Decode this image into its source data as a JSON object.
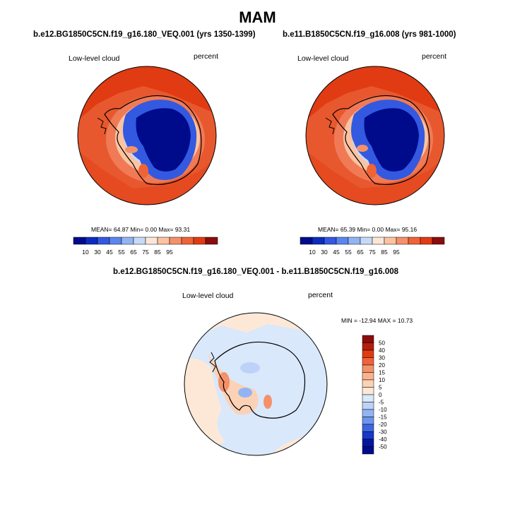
{
  "title": "MAM",
  "panels": [
    {
      "id": "case1",
      "title": "b.e12.BG1850C5CN.f19_g16.180_VEQ.001 (yrs 1350-1399)",
      "variable": "Low-level cloud",
      "units": "percent",
      "stats": "MEAN=  64.87  Min=   0.00  Max=  93.31",
      "colorbar_labels": [
        "10",
        "30",
        "45",
        "55",
        "65",
        "75",
        "85",
        "95"
      ]
    },
    {
      "id": "case2",
      "title": "b.e11.B1850C5CN.f19_g16.008 (yrs 981-1000)",
      "variable": "Low-level cloud",
      "units": "percent",
      "stats": "MEAN=  65.39  Min=   0.00  Max=  95.16",
      "colorbar_labels": [
        "10",
        "30",
        "45",
        "55",
        "65",
        "75",
        "85",
        "95"
      ]
    },
    {
      "id": "difference",
      "title": "b.e12.BG1850C5CN.f19_g16.180_VEQ.001 - b.e11.B1850C5CN.f19_g16.008",
      "variable": "Low-level cloud",
      "units": "percent",
      "stats": "MIN = -12.94 MAX =  10.73",
      "colorbar_labels": [
        "50",
        "40",
        "30",
        "20",
        "15",
        "10",
        "5",
        "0",
        "-5",
        "-10",
        "-15",
        "-20",
        "-30",
        "-40",
        "-50"
      ]
    }
  ],
  "colors": {
    "abs_scale": [
      "#000b8c",
      "#0c2bbf",
      "#3359e0",
      "#5c85ee",
      "#93b4f3",
      "#c6daf8",
      "#fbe7d8",
      "#fbc3a2",
      "#f5916a",
      "#ef6337",
      "#e03b13",
      "#8a0c0c"
    ],
    "diff_scale": [
      "#8a0c0c",
      "#b51d0f",
      "#e03b13",
      "#ef6337",
      "#f5916a",
      "#fbb38e",
      "#fcd2b6",
      "#fde8d8",
      "#d9e8fb",
      "#bcd2f6",
      "#93b4f3",
      "#6d95ee",
      "#3e66e2",
      "#1838c8",
      "#0018a0",
      "#000b8c"
    ]
  }
}
